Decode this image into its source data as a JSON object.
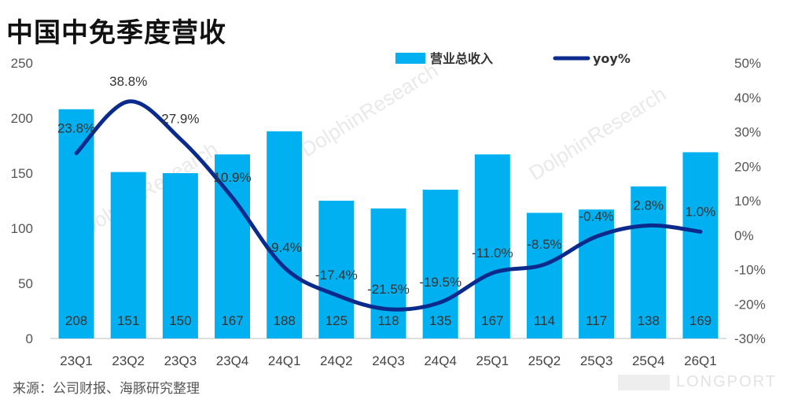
{
  "title": "中国中免季度营收",
  "source": "来源：公司财报、海豚研究整理",
  "watermark": "DolphinResearch",
  "brand": "LONGPORT",
  "chart_data": {
    "type": "bar",
    "categories": [
      "23Q1",
      "23Q2",
      "23Q3",
      "23Q4",
      "24Q1",
      "24Q2",
      "24Q3",
      "24Q4",
      "25Q1",
      "25Q2",
      "25Q3",
      "25Q4",
      "26Q1"
    ],
    "series": [
      {
        "name": "营业总收入",
        "type": "bar",
        "axis": "left",
        "color": "#00b0f0",
        "values": [
          208,
          151,
          150,
          167,
          188,
          125,
          118,
          135,
          167,
          114,
          117,
          138,
          169
        ]
      },
      {
        "name": "yoy%",
        "type": "line",
        "axis": "right",
        "color": "#0b2b8c",
        "values": [
          23.8,
          38.8,
          27.9,
          10.9,
          -9.4,
          -17.4,
          -21.5,
          -19.5,
          -11.0,
          -8.5,
          -0.4,
          2.8,
          1.0
        ],
        "labels": [
          "23.8%",
          "38.8%",
          "27.9%",
          "10.9%",
          "-9.4%",
          "-17.4%",
          "-21.5%",
          "-19.5%",
          "-11.0%",
          "-8.5%",
          "-0.4%",
          "2.8%",
          "1.0%"
        ]
      }
    ],
    "y_left": {
      "min": 0,
      "max": 250,
      "ticks": [
        "0",
        "50",
        "100",
        "150",
        "200",
        "250"
      ]
    },
    "y_right": {
      "min": -30,
      "max": 50,
      "ticks": [
        "-30%",
        "-20%",
        "-10%",
        "0%",
        "10%",
        "20%",
        "30%",
        "40%",
        "50%"
      ]
    },
    "grid": false,
    "legend": "top-right"
  }
}
